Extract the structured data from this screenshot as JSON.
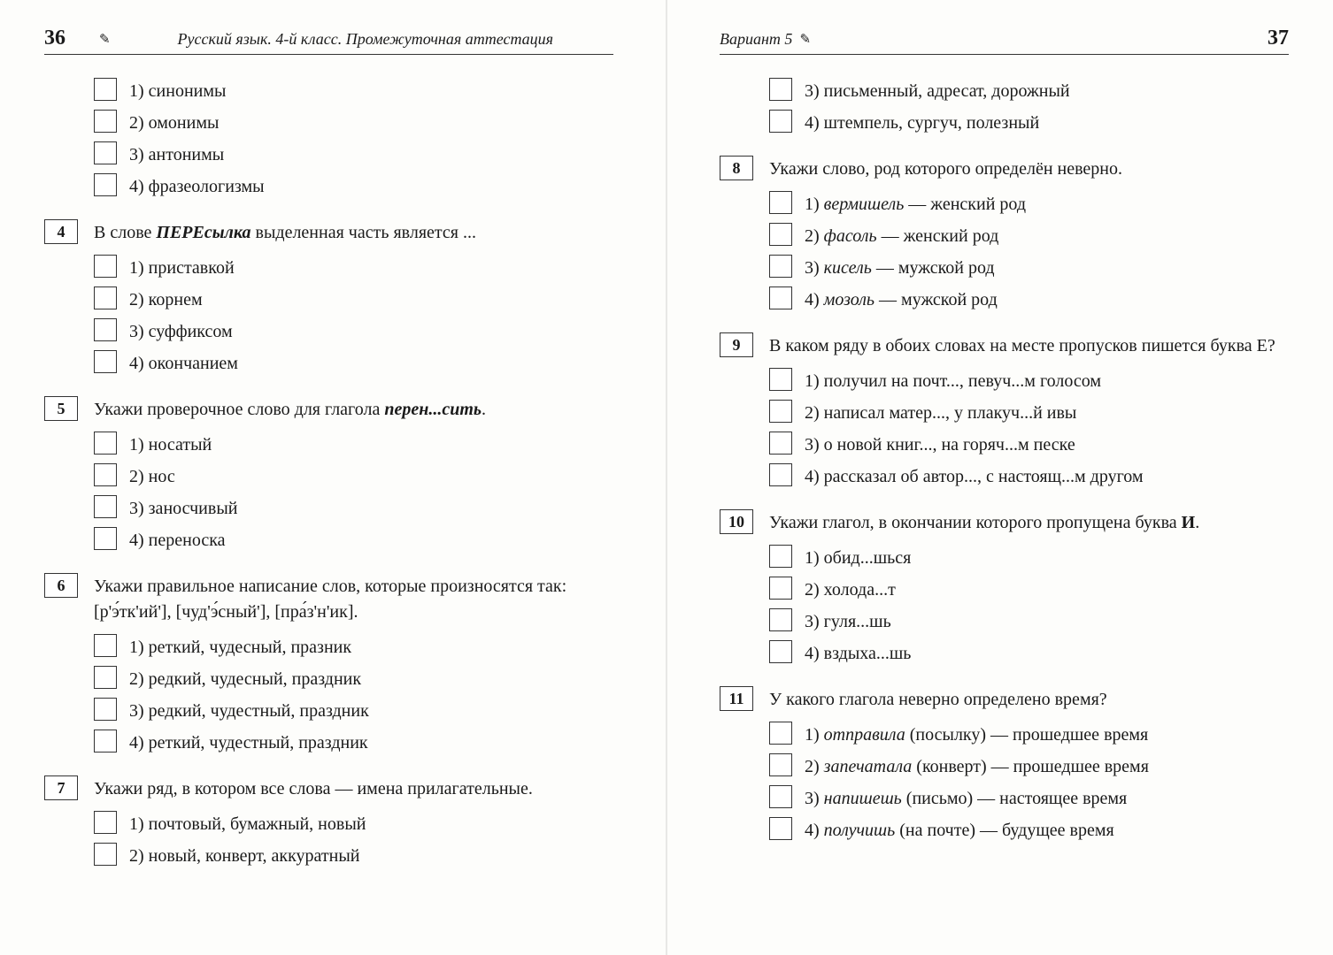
{
  "left": {
    "page_number": "36",
    "header_title": "Русский язык. 4-й класс. Промежуточная аттестация",
    "lead_options": [
      "1) синонимы",
      "2) омонимы",
      "3) антонимы",
      "4) фразеологизмы"
    ],
    "questions": [
      {
        "num": "4",
        "text_html": "В слове <b><i>ПЕРЕсылка</i></b> выделенная часть является ...",
        "options": [
          "1) приставкой",
          "2) корнем",
          "3) суффиксом",
          "4) окончанием"
        ]
      },
      {
        "num": "5",
        "text_html": "Укажи проверочное слово для глагола <b><i>перен...сить</i></b>.",
        "options": [
          "1) носатый",
          "2) нос",
          "3) заносчивый",
          "4) переноска"
        ]
      },
      {
        "num": "6",
        "text_html": "Укажи правильное написание слов, которые произносятся так: [р'э́тк'ий'], [чуд'э́сный'], [пра́з'н'ик].",
        "options": [
          "1) реткий, чудесный, празник",
          "2) редкий, чудесный, праздник",
          "3) редкий, чудестный, праздник",
          "4) реткий, чудестный, праздник"
        ]
      },
      {
        "num": "7",
        "text_html": "Укажи ряд, в котором все слова — имена прилагательные.",
        "options": [
          "1) почтовый, бумажный, новый",
          "2) новый, конверт, аккуратный"
        ]
      }
    ]
  },
  "right": {
    "page_number": "37",
    "header_title": "Вариант 5",
    "lead_options": [
      "3) письменный, адресат, дорожный",
      "4) штемпель, сургуч, полезный"
    ],
    "questions": [
      {
        "num": "8",
        "text_html": "Укажи слово, род которого определён неверно.",
        "options_html": [
          "1) <i>вермишель</i> — женский род",
          "2) <i>фасоль</i> — женский род",
          "3) <i>кисель</i> — мужской род",
          "4) <i>мозоль</i> — мужской род"
        ]
      },
      {
        "num": "9",
        "text_html": "В каком ряду в обоих словах на месте пропусков пишется буква Е?",
        "options": [
          "1) получил на почт..., певуч...м голосом",
          "2) написал матер..., у плакуч...й ивы",
          "3) о новой книг..., на горяч...м песке",
          "4) рассказал об автор..., с настоящ...м другом"
        ]
      },
      {
        "num": "10",
        "text_html": "Укажи глагол, в окончании которого пропущена буква <b>И</b>.",
        "options": [
          "1) обид...шься",
          "2) холода...т",
          "3) гуля...шь",
          "4) вздыха...шь"
        ]
      },
      {
        "num": "11",
        "text_html": "У какого глагола неверно определено время?",
        "options_html": [
          "1) <i>отправила</i> (посылку) — прошедшее время",
          "2) <i>запечатала</i> (конверт) — прошедшее время",
          "3) <i>напишешь</i> (письмо) — настоящее время",
          "4) <i>получишь</i> (на почте) — будущее время"
        ]
      }
    ]
  }
}
